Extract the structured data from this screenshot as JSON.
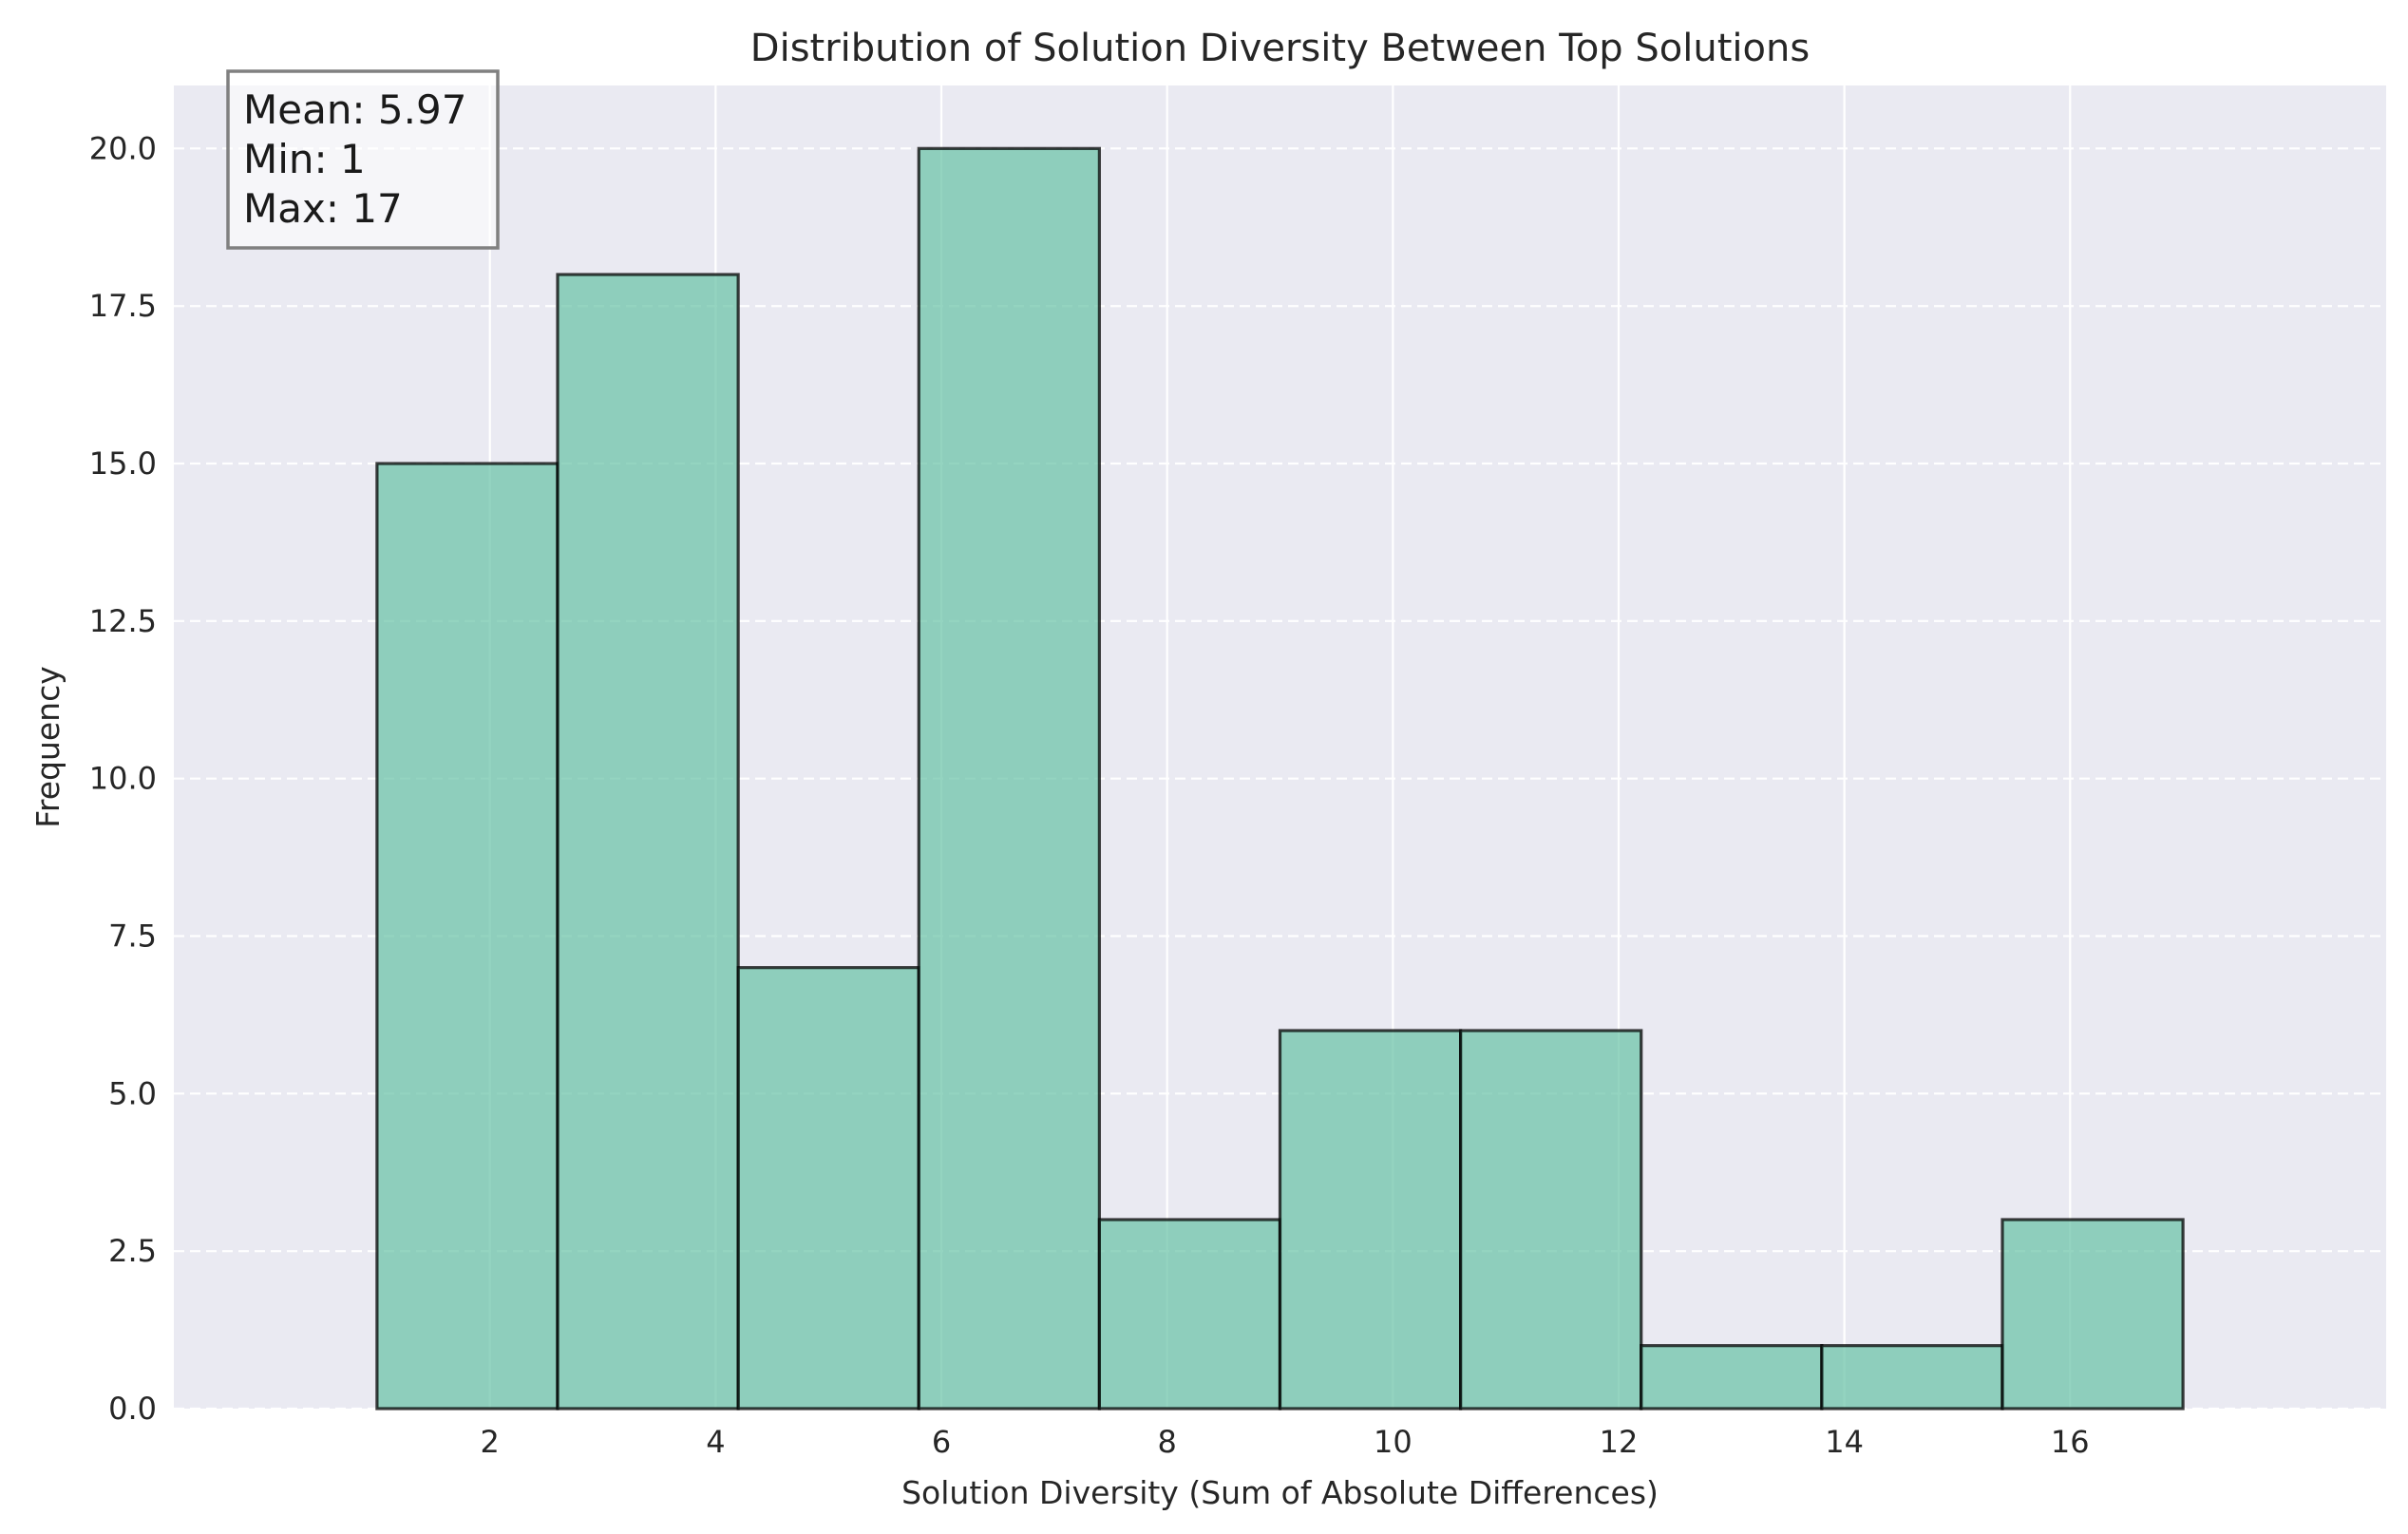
{
  "chart_data": {
    "type": "bar",
    "subtype": "histogram",
    "title": "Distribution of Solution Diversity Between Top Solutions",
    "xlabel": "Solution Diversity (Sum of Absolute Differences)",
    "ylabel": "Frequency",
    "bin_edges": [
      1.0,
      2.6,
      4.2,
      5.8,
      7.4,
      9.0,
      10.6,
      12.2,
      13.8,
      15.4,
      17.0
    ],
    "values": [
      15,
      18,
      7,
      20,
      3,
      6,
      6,
      1,
      1,
      3
    ],
    "xlim": [
      -0.8,
      18.8
    ],
    "ylim": [
      0,
      21
    ],
    "x_ticks": [
      2,
      4,
      6,
      8,
      10,
      12,
      14,
      16
    ],
    "x_tick_labels": [
      "2",
      "4",
      "6",
      "8",
      "10",
      "12",
      "14",
      "16"
    ],
    "y_ticks": [
      0,
      2.5,
      5,
      7.5,
      10,
      12.5,
      15,
      17.5,
      20
    ],
    "y_tick_labels": [
      "0.0",
      "2.5",
      "5.0",
      "7.5",
      "10.0",
      "12.5",
      "15.0",
      "17.5",
      "20.0"
    ],
    "grid": true,
    "stats_box": {
      "lines": [
        "Mean: 5.97",
        "Min: 1",
        "Max: 17"
      ],
      "placement": "top-left"
    },
    "colors": {
      "bar_fill": "#66c2a5",
      "bar_edge": "#000000",
      "plot_background": "#eaeaf2",
      "grid": "#ffffff",
      "stats_box_fill": "#ffffff",
      "stats_box_edge": "#808080"
    }
  }
}
